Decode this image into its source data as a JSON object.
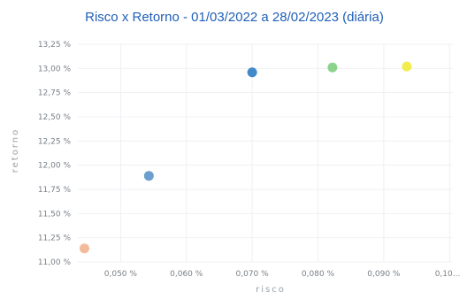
{
  "chart_data": {
    "type": "scatter",
    "title": "Risco x Retorno - 01/03/2022 a 28/02/2023 (diária)",
    "xlabel": "risco",
    "ylabel": "retorno",
    "xlim": [
      0.0435,
      0.1005
    ],
    "ylim": [
      11.0,
      13.25
    ],
    "x_ticks": [
      "0,050 %",
      "0,060 %",
      "0,070 %",
      "0,080 %",
      "0,090 %",
      "0,10..."
    ],
    "x_tick_values": [
      0.05,
      0.06,
      0.07,
      0.08,
      0.09,
      0.1
    ],
    "y_ticks": [
      "11,00 %",
      "11,25 %",
      "11,50 %",
      "11,75 %",
      "12,00 %",
      "12,25 %",
      "12,50 %",
      "12,75 %",
      "13,00 %",
      "13,25 %"
    ],
    "y_tick_values": [
      11.0,
      11.25,
      11.5,
      11.75,
      12.0,
      12.25,
      12.5,
      12.75,
      13.0,
      13.25
    ],
    "grid": true,
    "points": [
      {
        "x": 0.0445,
        "y": 11.14,
        "color": "#f2b48f"
      },
      {
        "x": 0.0543,
        "y": 11.89,
        "color": "#5b95c9"
      },
      {
        "x": 0.07,
        "y": 12.96,
        "color": "#2f7dc4"
      },
      {
        "x": 0.0822,
        "y": 13.01,
        "color": "#7fcf7f"
      },
      {
        "x": 0.0935,
        "y": 13.02,
        "color": "#f2ea3a"
      }
    ]
  }
}
